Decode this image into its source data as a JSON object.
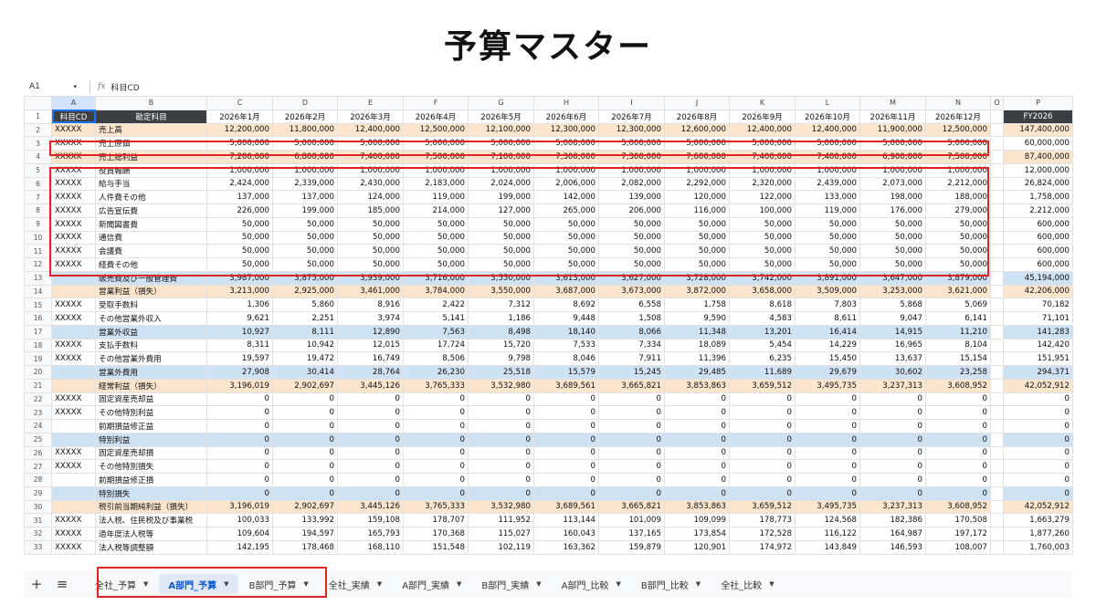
{
  "title": "予算マスター",
  "formula_bar": {
    "cell_ref": "A1",
    "fx": "fx",
    "content": "科目CD"
  },
  "col_letters": [
    "A",
    "B",
    "C",
    "D",
    "E",
    "F",
    "G",
    "H",
    "I",
    "J",
    "K",
    "L",
    "M",
    "N",
    "O",
    "P"
  ],
  "header_row": {
    "row_num": "1",
    "code": "科目CD",
    "name": "勘定科目",
    "months": [
      "2026年1月",
      "2026年2月",
      "2026年3月",
      "2026年4月",
      "2026年5月",
      "2026年6月",
      "2026年7月",
      "2026年8月",
      "2026年9月",
      "2026年10月",
      "2026年11月",
      "2026年12月"
    ],
    "total": "FY2026"
  },
  "rows": [
    {
      "n": "2",
      "code": "XXXXX",
      "name": "売上高",
      "style": "orange",
      "values": [
        "12,200,000",
        "11,800,000",
        "12,400,000",
        "12,500,000",
        "12,100,000",
        "12,300,000",
        "12,300,000",
        "12,600,000",
        "12,400,000",
        "12,400,000",
        "11,900,000",
        "12,500,000"
      ],
      "total": "147,400,000"
    },
    {
      "n": "3",
      "code": "XXXXX",
      "name": "売上原価",
      "style": "",
      "values": [
        "5,000,000",
        "5,000,000",
        "5,000,000",
        "5,000,000",
        "5,000,000",
        "5,000,000",
        "5,000,000",
        "5,000,000",
        "5,000,000",
        "5,000,000",
        "5,000,000",
        "5,000,000"
      ],
      "total": "60,000,000"
    },
    {
      "n": "4",
      "code": "XXXXX",
      "name": "売上総利益",
      "style": "orange",
      "values": [
        "7,200,000",
        "6,800,000",
        "7,400,000",
        "7,500,000",
        "7,100,000",
        "7,300,000",
        "7,300,000",
        "7,600,000",
        "7,400,000",
        "7,400,000",
        "6,900,000",
        "7,500,000"
      ],
      "total": "87,400,000"
    },
    {
      "n": "5",
      "code": "XXXXX",
      "name": "役員報酬",
      "style": "",
      "values": [
        "1,000,000",
        "1,000,000",
        "1,000,000",
        "1,000,000",
        "1,000,000",
        "1,000,000",
        "1,000,000",
        "1,000,000",
        "1,000,000",
        "1,000,000",
        "1,000,000",
        "1,000,000"
      ],
      "total": "12,000,000"
    },
    {
      "n": "6",
      "code": "XXXXX",
      "name": "給与手当",
      "style": "",
      "values": [
        "2,424,000",
        "2,339,000",
        "2,430,000",
        "2,183,000",
        "2,024,000",
        "2,006,000",
        "2,082,000",
        "2,292,000",
        "2,320,000",
        "2,439,000",
        "2,073,000",
        "2,212,000"
      ],
      "total": "26,824,000"
    },
    {
      "n": "7",
      "code": "XXXXX",
      "name": "人件費その他",
      "style": "",
      "values": [
        "137,000",
        "137,000",
        "124,000",
        "119,000",
        "199,000",
        "142,000",
        "139,000",
        "120,000",
        "122,000",
        "133,000",
        "198,000",
        "188,000"
      ],
      "total": "1,758,000"
    },
    {
      "n": "8",
      "code": "XXXXX",
      "name": "広告宣伝費",
      "style": "",
      "values": [
        "226,000",
        "199,000",
        "185,000",
        "214,000",
        "127,000",
        "265,000",
        "206,000",
        "116,000",
        "100,000",
        "119,000",
        "176,000",
        "279,000"
      ],
      "total": "2,212,000"
    },
    {
      "n": "9",
      "code": "XXXXX",
      "name": "新聞図書費",
      "style": "",
      "values": [
        "50,000",
        "50,000",
        "50,000",
        "50,000",
        "50,000",
        "50,000",
        "50,000",
        "50,000",
        "50,000",
        "50,000",
        "50,000",
        "50,000"
      ],
      "total": "600,000"
    },
    {
      "n": "10",
      "code": "XXXXX",
      "name": "通信費",
      "style": "",
      "values": [
        "50,000",
        "50,000",
        "50,000",
        "50,000",
        "50,000",
        "50,000",
        "50,000",
        "50,000",
        "50,000",
        "50,000",
        "50,000",
        "50,000"
      ],
      "total": "600,000"
    },
    {
      "n": "11",
      "code": "XXXXX",
      "name": "会議費",
      "style": "",
      "values": [
        "50,000",
        "50,000",
        "50,000",
        "50,000",
        "50,000",
        "50,000",
        "50,000",
        "50,000",
        "50,000",
        "50,000",
        "50,000",
        "50,000"
      ],
      "total": "600,000"
    },
    {
      "n": "12",
      "code": "XXXXX",
      "name": "経費その他",
      "style": "",
      "values": [
        "50,000",
        "50,000",
        "50,000",
        "50,000",
        "50,000",
        "50,000",
        "50,000",
        "50,000",
        "50,000",
        "50,000",
        "50,000",
        "50,000"
      ],
      "total": "600,000"
    },
    {
      "n": "13",
      "code": "",
      "name": "販売費及び一般管理費",
      "style": "blue",
      "values": [
        "3,987,000",
        "3,875,000",
        "3,939,000",
        "3,716,000",
        "3,550,000",
        "3,613,000",
        "3,627,000",
        "3,728,000",
        "3,742,000",
        "3,891,000",
        "3,647,000",
        "3,879,000"
      ],
      "total": "45,194,000"
    },
    {
      "n": "14",
      "code": "",
      "name": "営業利益（損失）",
      "style": "orange",
      "values": [
        "3,213,000",
        "2,925,000",
        "3,461,000",
        "3,784,000",
        "3,550,000",
        "3,687,000",
        "3,673,000",
        "3,872,000",
        "3,658,000",
        "3,509,000",
        "3,253,000",
        "3,621,000"
      ],
      "total": "42,206,000"
    },
    {
      "n": "15",
      "code": "XXXXX",
      "name": "受取手数料",
      "style": "",
      "values": [
        "1,306",
        "5,860",
        "8,916",
        "2,422",
        "7,312",
        "8,692",
        "6,558",
        "1,758",
        "8,618",
        "7,803",
        "5,868",
        "5,069"
      ],
      "total": "70,182"
    },
    {
      "n": "16",
      "code": "XXXXX",
      "name": "その他営業外収入",
      "style": "",
      "values": [
        "9,621",
        "2,251",
        "3,974",
        "5,141",
        "1,186",
        "9,448",
        "1,508",
        "9,590",
        "4,583",
        "8,611",
        "9,047",
        "6,141"
      ],
      "total": "71,101"
    },
    {
      "n": "17",
      "code": "",
      "name": "営業外収益",
      "style": "blue",
      "values": [
        "10,927",
        "8,111",
        "12,890",
        "7,563",
        "8,498",
        "18,140",
        "8,066",
        "11,348",
        "13,201",
        "16,414",
        "14,915",
        "11,210"
      ],
      "total": "141,283"
    },
    {
      "n": "18",
      "code": "XXXXX",
      "name": "支払手数料",
      "style": "",
      "values": [
        "8,311",
        "10,942",
        "12,015",
        "17,724",
        "15,720",
        "7,533",
        "7,334",
        "18,089",
        "5,454",
        "14,229",
        "16,965",
        "8,104"
      ],
      "total": "142,420"
    },
    {
      "n": "19",
      "code": "XXXXX",
      "name": "その他営業外費用",
      "style": "",
      "values": [
        "19,597",
        "19,472",
        "16,749",
        "8,506",
        "9,798",
        "8,046",
        "7,911",
        "11,396",
        "6,235",
        "15,450",
        "13,637",
        "15,154"
      ],
      "total": "151,951"
    },
    {
      "n": "20",
      "code": "",
      "name": "営業外費用",
      "style": "blue",
      "values": [
        "27,908",
        "30,414",
        "28,764",
        "26,230",
        "25,518",
        "15,579",
        "15,245",
        "29,485",
        "11,689",
        "29,679",
        "30,602",
        "23,258"
      ],
      "total": "294,371"
    },
    {
      "n": "21",
      "code": "",
      "name": "経常利益（損失）",
      "style": "orange",
      "values": [
        "3,196,019",
        "2,902,697",
        "3,445,126",
        "3,765,333",
        "3,532,980",
        "3,689,561",
        "3,665,821",
        "3,853,863",
        "3,659,512",
        "3,495,735",
        "3,237,313",
        "3,608,952"
      ],
      "total": "42,052,912"
    },
    {
      "n": "22",
      "code": "XXXXX",
      "name": "固定資産売却益",
      "style": "",
      "values": [
        "0",
        "0",
        "0",
        "0",
        "0",
        "0",
        "0",
        "0",
        "0",
        "0",
        "0",
        "0"
      ],
      "total": "0"
    },
    {
      "n": "23",
      "code": "XXXXX",
      "name": "その他特別利益",
      "style": "",
      "values": [
        "0",
        "0",
        "0",
        "0",
        "0",
        "0",
        "0",
        "0",
        "0",
        "0",
        "0",
        "0"
      ],
      "total": "0"
    },
    {
      "n": "24",
      "code": "",
      "name": "前期損益修正益",
      "style": "",
      "values": [
        "0",
        "0",
        "0",
        "0",
        "0",
        "0",
        "0",
        "0",
        "0",
        "0",
        "0",
        "0"
      ],
      "total": "0"
    },
    {
      "n": "25",
      "code": "",
      "name": "特別利益",
      "style": "blue",
      "values": [
        "0",
        "0",
        "0",
        "0",
        "0",
        "0",
        "0",
        "0",
        "0",
        "0",
        "0",
        "0"
      ],
      "total": "0"
    },
    {
      "n": "26",
      "code": "XXXXX",
      "name": "固定資産売却損",
      "style": "",
      "values": [
        "0",
        "0",
        "0",
        "0",
        "0",
        "0",
        "0",
        "0",
        "0",
        "0",
        "0",
        "0"
      ],
      "total": "0"
    },
    {
      "n": "27",
      "code": "XXXXX",
      "name": "その他特別損失",
      "style": "",
      "values": [
        "0",
        "0",
        "0",
        "0",
        "0",
        "0",
        "0",
        "0",
        "0",
        "0",
        "0",
        "0"
      ],
      "total": "0"
    },
    {
      "n": "28",
      "code": "",
      "name": "前期損益修正損",
      "style": "",
      "values": [
        "0",
        "0",
        "0",
        "0",
        "0",
        "0",
        "0",
        "0",
        "0",
        "0",
        "0",
        "0"
      ],
      "total": "0"
    },
    {
      "n": "29",
      "code": "",
      "name": "特別損失",
      "style": "blue",
      "values": [
        "0",
        "0",
        "0",
        "0",
        "0",
        "0",
        "0",
        "0",
        "0",
        "0",
        "0",
        "0"
      ],
      "total": "0"
    },
    {
      "n": "30",
      "code": "",
      "name": "税引前当期純利益（損失）",
      "style": "orange",
      "values": [
        "3,196,019",
        "2,902,697",
        "3,445,126",
        "3,765,333",
        "3,532,980",
        "3,689,561",
        "3,665,821",
        "3,853,863",
        "3,659,512",
        "3,495,735",
        "3,237,313",
        "3,608,952"
      ],
      "total": "42,052,912"
    },
    {
      "n": "31",
      "code": "XXXXX",
      "name": "法人税、住民税及び事業税",
      "style": "",
      "values": [
        "100,033",
        "133,992",
        "159,108",
        "178,707",
        "111,952",
        "113,144",
        "101,009",
        "109,099",
        "178,773",
        "124,568",
        "182,386",
        "170,508"
      ],
      "total": "1,663,279"
    },
    {
      "n": "32",
      "code": "XXXXX",
      "name": "過年度法人税等",
      "style": "",
      "values": [
        "109,604",
        "194,597",
        "165,793",
        "170,368",
        "115,027",
        "160,043",
        "137,165",
        "173,854",
        "172,528",
        "116,122",
        "164,987",
        "197,172"
      ],
      "total": "1,877,260"
    },
    {
      "n": "33",
      "code": "XXXXX",
      "name": "法人税等調整額",
      "style": "",
      "values": [
        "142,195",
        "178,468",
        "168,110",
        "151,548",
        "102,119",
        "163,362",
        "159,879",
        "120,901",
        "174,972",
        "143,849",
        "146,593",
        "108,007"
      ],
      "total": "1,760,003"
    }
  ],
  "tabs": [
    {
      "label": "全社_予算",
      "active": false
    },
    {
      "label": "A部門_予算",
      "active": true
    },
    {
      "label": "B部門_予算",
      "active": false
    },
    {
      "label": "全社_実績",
      "active": false
    },
    {
      "label": "A部門_実績",
      "active": false
    },
    {
      "label": "B部門_実績",
      "active": false
    },
    {
      "label": "A部門_比較",
      "active": false
    },
    {
      "label": "B部門_比較",
      "active": false
    },
    {
      "label": "全社_比較",
      "active": false
    }
  ],
  "icons": {
    "add": "plus-icon",
    "menu": "menu-icon",
    "dropdown": "caret-down-icon"
  },
  "colors": {
    "orange_row": "#fce5cd",
    "blue_row": "#cfe2f3",
    "header_dark": "#3c4043",
    "highlight_red": "#e02424",
    "active_tab": "#0b57d0"
  }
}
